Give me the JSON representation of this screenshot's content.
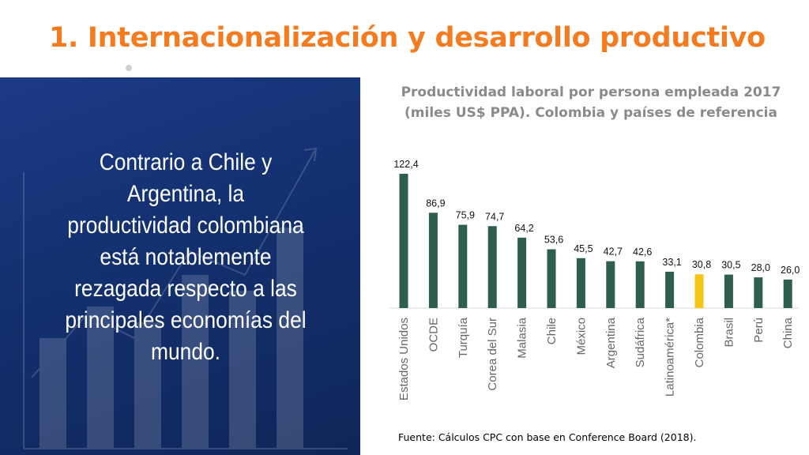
{
  "slide": {
    "title": "1. Internacionalización y desarrollo productivo",
    "body_text": "Contrario a Chile y Argentina, la productividad colombiana está notablemente rezagada respecto a las principales economías del mundo.",
    "source": "Fuente:  Cálculos CPC con base en Conference Board (2018).",
    "title_color": "#f47b20",
    "panel_color": "#13306f"
  },
  "chart_title_lines": [
    "Productividad laboral por persona empleada 2017",
    "(miles US$ PPA). Colombia y países de referencia"
  ],
  "chart_data": {
    "type": "bar",
    "title": "Productividad laboral por persona empleada 2017 (miles US$ PPA). Colombia y países de referencia",
    "xlabel": "",
    "ylabel": "",
    "categories": [
      "Estados Unidos",
      "OCDE",
      "Turquía",
      "Corea del Sur",
      "Malasia",
      "Chile",
      "México",
      "Argentina",
      "Sudáfrica",
      "Latinoamérica*",
      "Colombia",
      "Brasil",
      "Perú",
      "China"
    ],
    "values": [
      122.4,
      86.9,
      75.9,
      74.7,
      64.2,
      53.6,
      45.5,
      42.7,
      42.6,
      33.1,
      30.8,
      30.5,
      28.0,
      26.0
    ],
    "value_labels": [
      "122,4",
      "86,9",
      "75,9",
      "74,7",
      "64,2",
      "53,6",
      "45,5",
      "42,7",
      "42,6",
      "33,1",
      "30,8",
      "30,5",
      "28,0",
      "26,0"
    ],
    "ylim": [
      0,
      125
    ],
    "grid": false,
    "legend": "none",
    "bar_color": "#2e5e4e",
    "highlight_category": "Colombia",
    "highlight_color": "#f5c518"
  }
}
